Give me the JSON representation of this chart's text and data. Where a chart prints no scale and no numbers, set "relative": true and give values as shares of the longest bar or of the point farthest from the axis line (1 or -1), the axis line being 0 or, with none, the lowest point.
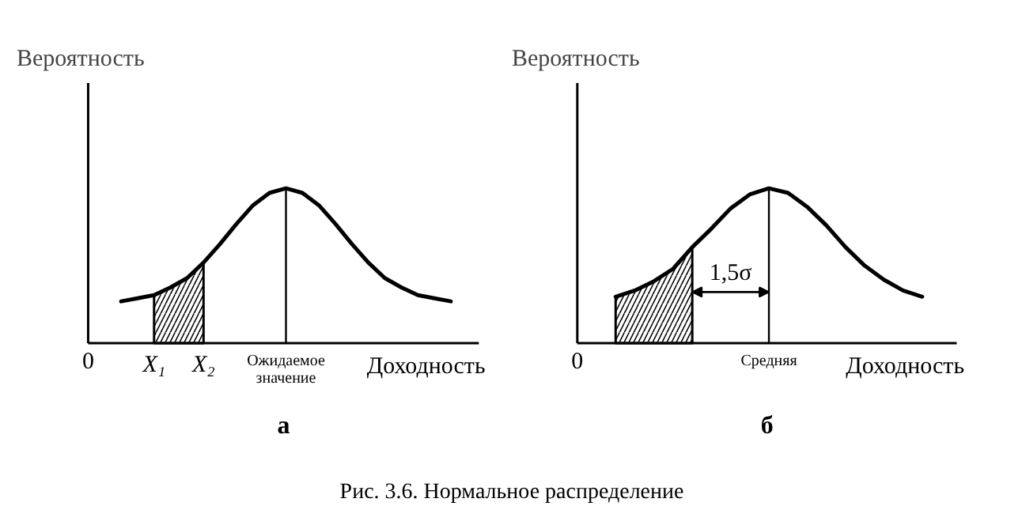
{
  "chart_data": [
    {
      "type": "line",
      "title": "а",
      "ylabel": "Вероятность",
      "xlabel": "Доходность",
      "relative": true,
      "grid": false,
      "categories": [
        "0",
        null,
        null,
        null,
        "X₁",
        null,
        null,
        "X₂",
        null,
        null,
        null,
        null,
        "Ожидаемое значение",
        null,
        null,
        null,
        null,
        null,
        null,
        null,
        null,
        null,
        null
      ],
      "series": [
        {
          "type": "line",
          "color": "#000000",
          "values": [
            null,
            null,
            0.27,
            0.29,
            0.31,
            0.36,
            0.42,
            0.52,
            0.64,
            0.77,
            0.89,
            0.97,
            1.0,
            0.97,
            0.89,
            0.77,
            0.64,
            0.52,
            0.42,
            0.36,
            0.31,
            0.29,
            0.27
          ]
        },
        {
          "type": "area",
          "color": "#000000",
          "values": [
            null,
            null,
            null,
            null,
            0.31,
            0.36,
            0.42,
            0.52,
            null,
            null,
            null,
            null,
            null,
            null,
            null,
            null,
            null,
            null,
            null,
            null,
            null,
            null,
            null
          ]
        }
      ],
      "ref_lines": [
        {
          "axis": "x",
          "value": "Ожидаемое значение"
        }
      ]
    },
    {
      "type": "line",
      "title": "б",
      "ylabel": "Вероятность",
      "xlabel": "Доходность",
      "relative": true,
      "grid": false,
      "categories": [
        "0",
        null,
        null,
        null,
        null,
        null,
        null,
        null,
        null,
        null,
        "Средняя",
        null,
        null,
        null,
        null,
        null,
        null,
        null,
        null
      ],
      "series": [
        {
          "type": "line",
          "color": "#000000",
          "values": [
            null,
            null,
            0.3,
            0.34,
            0.4,
            0.48,
            0.62,
            0.74,
            0.87,
            0.96,
            1.0,
            0.97,
            0.88,
            0.76,
            0.62,
            0.5,
            0.41,
            0.34,
            0.3
          ]
        },
        {
          "type": "area",
          "color": "#000000",
          "values": [
            null,
            null,
            0.3,
            0.34,
            0.4,
            0.48,
            0.62,
            null,
            null,
            null,
            null,
            null,
            null,
            null,
            null,
            null,
            null,
            null,
            null
          ]
        }
      ],
      "ref_lines": [
        {
          "axis": "x",
          "value": "Средняя"
        }
      ],
      "annotations": [
        "1,5σ"
      ]
    },
    {
      "type": "other",
      "title": "Рис. 3.6. Нормальное распределение"
    }
  ]
}
